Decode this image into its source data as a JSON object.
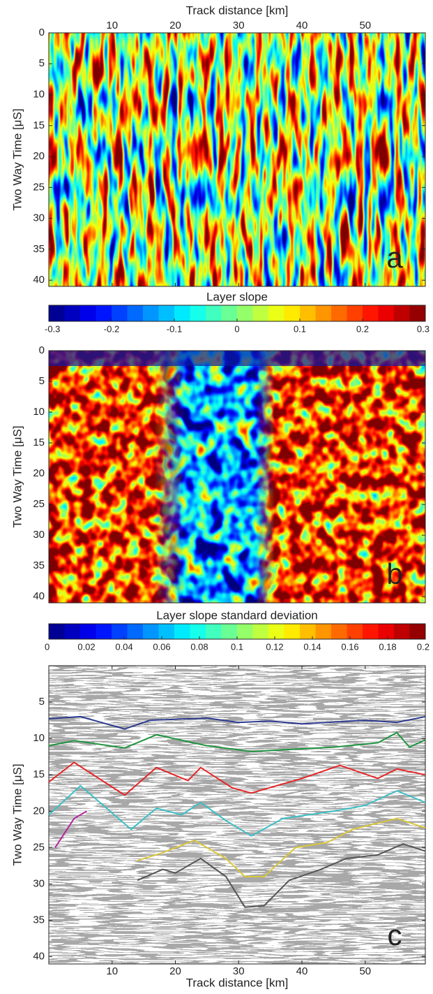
{
  "chart_data": [
    {
      "type": "heatmap",
      "xlabel": "Track distance [km]",
      "ylabel": "Two Way Time [μS]",
      "panel_label": "a",
      "xlim": [
        0,
        59.5
      ],
      "ylim": [
        0,
        41
      ],
      "y_inverted": true,
      "xticks": [
        10,
        20,
        30,
        40,
        50
      ],
      "yticks": [
        0,
        5,
        10,
        15,
        20,
        25,
        30,
        35,
        40
      ],
      "colormap": "jet",
      "colorbar": {
        "label": "Layer slope",
        "lim": [
          -0.3,
          0.3
        ],
        "ticks": [
          -0.3,
          -0.2,
          -0.1,
          0,
          0.1,
          0.2,
          0.3
        ]
      }
    },
    {
      "type": "heatmap",
      "ylabel": "Two Way Time [μS]",
      "panel_label": "b",
      "ylim": [
        0,
        41
      ],
      "y_inverted": true,
      "yticks": [
        0,
        5,
        10,
        15,
        20,
        25,
        30,
        35,
        40
      ],
      "colormap": "jet",
      "colorbar": {
        "label": "Layer slope standard deviation",
        "lim": [
          0,
          0.2
        ],
        "ticks": [
          0,
          0.02,
          0.04,
          0.06,
          0.08,
          0.1,
          0.12,
          0.14,
          0.16,
          0.18,
          0.2
        ]
      }
    },
    {
      "type": "line",
      "xlabel": "Track distance [km]",
      "ylabel": "Two Way Time [μS]",
      "panel_label": "c",
      "xlim": [
        0,
        59.5
      ],
      "ylim": [
        0,
        41
      ],
      "y_inverted": true,
      "xticks": [
        10,
        20,
        30,
        40,
        50
      ],
      "yticks": [
        5,
        10,
        15,
        20,
        25,
        30,
        35,
        40
      ],
      "series": [
        {
          "color": "#2b3a8f",
          "x": [
            0,
            5,
            12,
            16,
            25,
            30,
            35,
            40,
            50,
            55,
            59.5
          ],
          "values": [
            7.3,
            7,
            8.7,
            7.5,
            7.2,
            7.8,
            7.6,
            8,
            7.5,
            7.8,
            7
          ]
        },
        {
          "color": "#1f9440",
          "x": [
            0,
            4,
            12,
            17,
            25,
            32,
            45,
            52,
            55,
            57,
            59.5
          ],
          "values": [
            11,
            10.3,
            11.3,
            9.5,
            11,
            11.8,
            11.2,
            10.6,
            9.2,
            11.2,
            10.2
          ]
        },
        {
          "color": "#e52628",
          "x": [
            0,
            4,
            12,
            17,
            22,
            24,
            29,
            32,
            40,
            46,
            52,
            55,
            59.5
          ],
          "values": [
            16,
            13.3,
            17.8,
            14,
            15.8,
            14,
            16.8,
            17.5,
            15.5,
            13.7,
            15.5,
            14.2,
            15
          ]
        },
        {
          "color": "#3bbfc4",
          "x": [
            0,
            5,
            13,
            17,
            21,
            24,
            28,
            32,
            37,
            45,
            50,
            55,
            59.5
          ],
          "values": [
            20.5,
            16.5,
            22.5,
            19.6,
            20.5,
            18.8,
            21.3,
            23.4,
            21,
            20,
            19.2,
            17.2,
            18.8
          ]
        },
        {
          "color": "#b0289a",
          "x": [
            1,
            4,
            6
          ],
          "values": [
            25,
            21,
            20
          ]
        },
        {
          "color": "#d9c73a",
          "x": [
            14,
            18,
            23,
            28,
            31,
            34,
            39,
            44,
            48,
            55,
            59.5
          ],
          "values": [
            26.8,
            25.7,
            24,
            26.5,
            29,
            29,
            25,
            24.3,
            22.5,
            21,
            22.3
          ]
        },
        {
          "color": "#555555",
          "x": [
            14,
            18,
            20,
            24,
            28,
            31,
            34,
            38,
            43,
            47,
            52,
            56,
            59.5
          ],
          "values": [
            29.5,
            28,
            28.5,
            26.5,
            29,
            33.2,
            33,
            29.5,
            28,
            26.5,
            26,
            24.5,
            25.5
          ]
        }
      ]
    }
  ]
}
